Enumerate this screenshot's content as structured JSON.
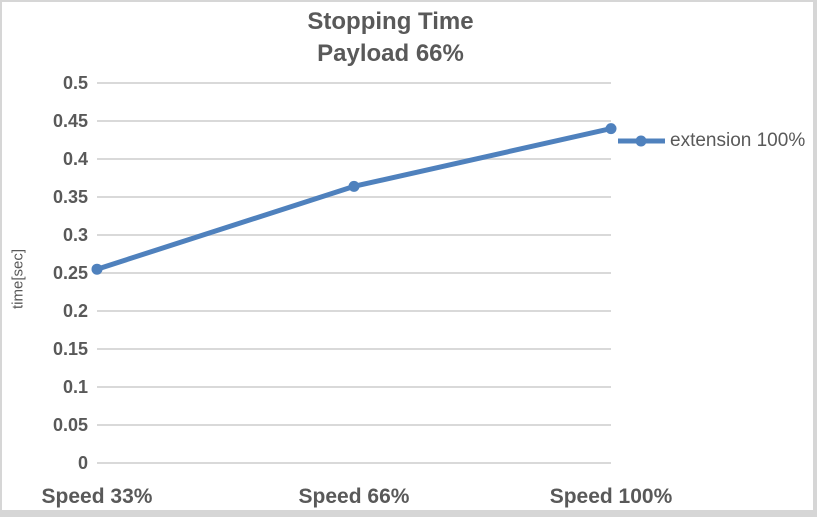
{
  "colors": {
    "background": "#ffffff",
    "frame_border": "#d6d6d6",
    "text": "#595959",
    "grid": "#d9d9d9",
    "accent": "#4f81bd"
  },
  "chart_data": {
    "type": "line",
    "title_lines": [
      "Stopping Time",
      "Payload 66%"
    ],
    "title": "Stopping Time Payload 66%",
    "categories": [
      "Speed 33%",
      "Speed 66%",
      "Speed 100%"
    ],
    "series": [
      {
        "name": "extension 100%",
        "values": [
          0.255,
          0.364,
          0.44
        ],
        "color": "#4f81bd",
        "marker": "circle"
      }
    ],
    "xlabel": "",
    "ylabel": "time[sec]",
    "ylim": [
      0,
      0.5
    ],
    "ytick_step": 0.05,
    "ytick_labels": [
      "0",
      "0.05",
      "0.1",
      "0.15",
      "0.2",
      "0.25",
      "0.3",
      "0.35",
      "0.4",
      "0.45",
      "0.5"
    ],
    "grid": true,
    "legend_position": "right"
  }
}
